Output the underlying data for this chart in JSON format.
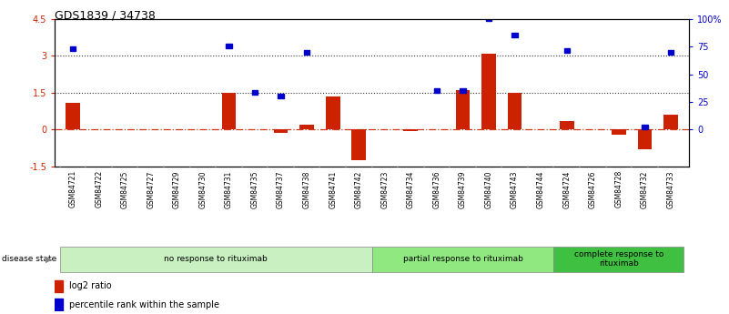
{
  "title": "GDS1839 / 34738",
  "samples": [
    "GSM84721",
    "GSM84722",
    "GSM84725",
    "GSM84727",
    "GSM84729",
    "GSM84730",
    "GSM84731",
    "GSM84735",
    "GSM84737",
    "GSM84738",
    "GSM84741",
    "GSM84742",
    "GSM84723",
    "GSM84734",
    "GSM84736",
    "GSM84739",
    "GSM84740",
    "GSM84743",
    "GSM84744",
    "GSM84724",
    "GSM84726",
    "GSM84728",
    "GSM84732",
    "GSM84733"
  ],
  "log2_ratio": [
    1.1,
    0.0,
    0.0,
    0.0,
    0.0,
    0.0,
    1.5,
    0.0,
    -0.15,
    0.2,
    1.35,
    -1.25,
    0.0,
    -0.05,
    0.0,
    1.6,
    3.1,
    1.5,
    0.0,
    0.35,
    0.0,
    -0.2,
    -0.8,
    0.6
  ],
  "percentile": [
    3.3,
    0.0,
    0.0,
    0.0,
    0.0,
    0.0,
    3.4,
    1.5,
    1.35,
    3.15,
    0.0,
    0.0,
    0.0,
    0.0,
    1.6,
    1.6,
    4.5,
    3.85,
    0.0,
    3.2,
    0.0,
    0.0,
    0.1,
    3.15
  ],
  "groups": [
    {
      "label": "no response to rituximab",
      "start": 0,
      "end": 11,
      "color": "#c8f0c0"
    },
    {
      "label": "partial response to rituximab",
      "start": 12,
      "end": 18,
      "color": "#90e880"
    },
    {
      "label": "complete response to\nrituximab",
      "start": 19,
      "end": 23,
      "color": "#40c040"
    }
  ],
  "ylim": [
    -1.5,
    4.5
  ],
  "y_right_ticks": [
    0,
    25,
    50,
    75,
    100
  ],
  "y_right_labels": [
    "0",
    "25",
    "50",
    "75",
    "100%"
  ],
  "y_left_ticks": [
    -1.5,
    0.0,
    1.5,
    3.0,
    4.5
  ],
  "y_left_labels": [
    "-1.5",
    "0",
    "1.5",
    "3",
    "4.5"
  ],
  "hlines_dotted": [
    1.5,
    3.0
  ],
  "bar_color": "#cc2200",
  "point_color": "#0000cc",
  "bar_width": 0.55,
  "background_color": "#ffffff",
  "disease_state_label": "disease state",
  "legend_items": [
    {
      "label": "log2 ratio",
      "color": "#cc2200"
    },
    {
      "label": "percentile rank within the sample",
      "color": "#0000cc"
    }
  ]
}
